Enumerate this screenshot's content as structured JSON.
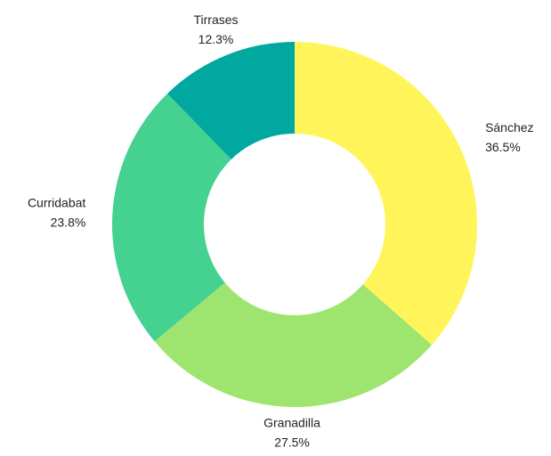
{
  "chart_data": {
    "type": "donut",
    "categories": [
      "Sánchez",
      "Granadilla",
      "Curridabat",
      "Tirrases"
    ],
    "values": [
      36.5,
      27.5,
      23.8,
      12.3
    ],
    "value_labels": [
      "36.5%",
      "27.5%",
      "23.8%",
      "12.3%"
    ],
    "colors": [
      "#fff55a",
      "#9de56e",
      "#45d190",
      "#00a8a0"
    ]
  }
}
